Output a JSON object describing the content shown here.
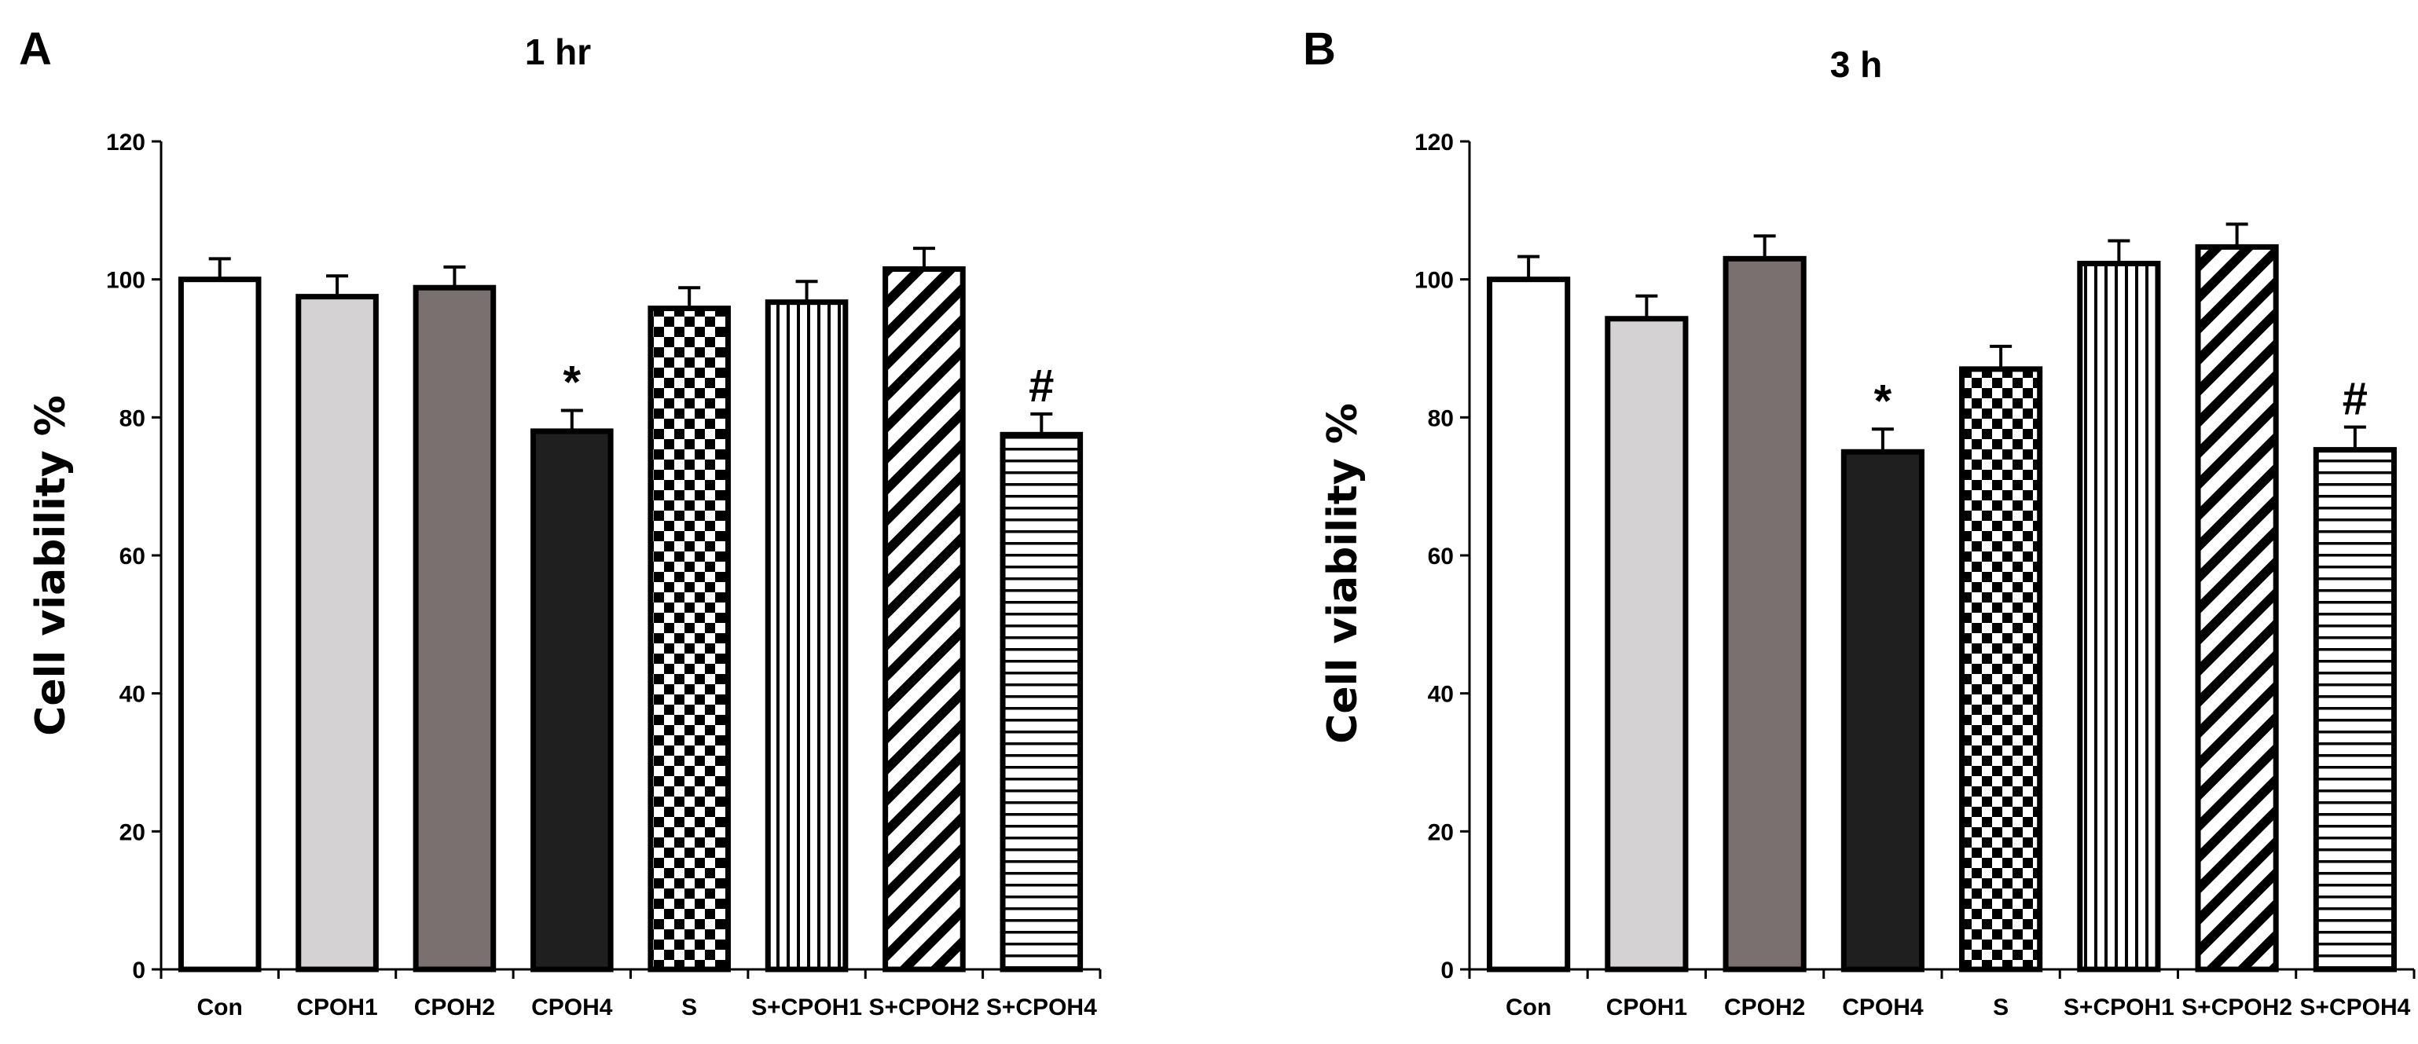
{
  "chart_data": [
    {
      "panel": "A",
      "type": "bar",
      "title": "1 hr",
      "xlabel": "",
      "ylabel": "Cell viability %",
      "ylim": [
        0,
        120
      ],
      "yticks": [
        "0",
        "20",
        "40",
        "60",
        "80",
        "100",
        "120"
      ],
      "categories": [
        "Con",
        "CPOH1",
        "CPOH2",
        "CPOH4",
        "S",
        "S+CPOH1",
        "S+CPOH2",
        "S+CPOH4"
      ],
      "values": [
        100,
        97.5,
        98.8,
        78,
        95.8,
        96.7,
        101.5,
        77.5
      ],
      "errors": [
        3,
        3,
        3,
        3,
        3,
        3,
        3,
        3
      ],
      "fills": [
        "white",
        "light-gray",
        "dark-gray",
        "black",
        "checker",
        "vertical-stripes",
        "diagonal-stripes",
        "horizontal-stripes"
      ],
      "annotations": [
        "",
        "",
        "",
        "*",
        "",
        "",
        "",
        "#"
      ]
    },
    {
      "panel": "B",
      "type": "bar",
      "title": "3 h",
      "xlabel": "",
      "ylabel": "Cell viability %",
      "ylim": [
        0,
        120
      ],
      "yticks": [
        "0",
        "20",
        "40",
        "60",
        "80",
        "100",
        "120"
      ],
      "categories": [
        "Con",
        "CPOH1",
        "CPOH2",
        "CPOH4",
        "S",
        "S+CPOH1",
        "S+CPOH2",
        "S+CPOH4"
      ],
      "values": [
        100,
        94.3,
        103,
        75,
        87,
        102.3,
        104.7,
        75.3
      ],
      "errors": [
        3.3,
        3.3,
        3.3,
        3.3,
        3.3,
        3.3,
        3.3,
        3.3
      ],
      "fills": [
        "white",
        "light-gray",
        "dark-gray",
        "black",
        "checker",
        "vertical-stripes",
        "diagonal-stripes",
        "horizontal-stripes"
      ],
      "annotations": [
        "",
        "",
        "",
        "*",
        "",
        "",
        "",
        "#"
      ]
    }
  ],
  "colors": {
    "light_gray": "#d4d2d3",
    "dark_gray": "#7a7070",
    "black": "#1f1f1f",
    "outline": "#000000"
  }
}
